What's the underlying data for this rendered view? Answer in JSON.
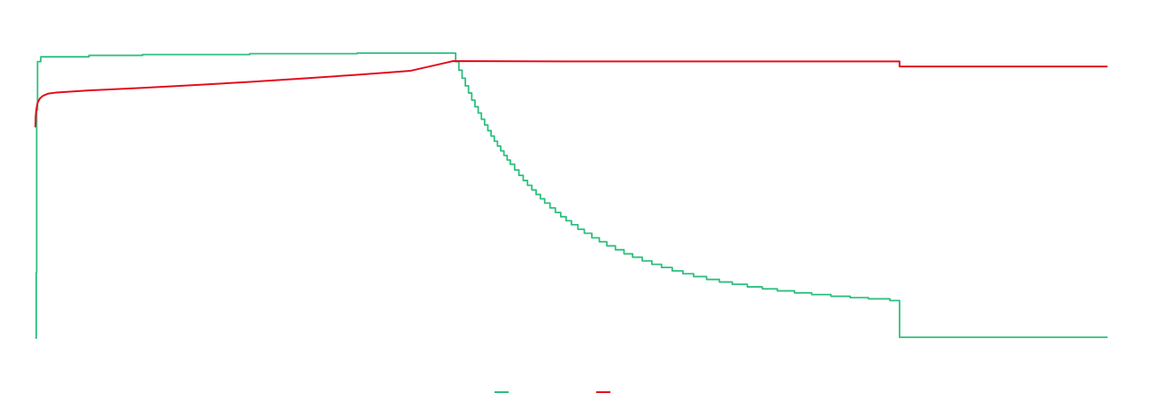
{
  "chart_data": {
    "type": "line",
    "title": "",
    "xlabel": "",
    "ylabel": "",
    "xlim": [
      0,
      1000
    ],
    "ylim": [
      0,
      100
    ],
    "grid": false,
    "legend_position": "bottom-center",
    "series": [
      {
        "key": "green",
        "color": "#2dbf7e",
        "interpolation": "step-after",
        "x": [
          0,
          0.8,
          1.2,
          2,
          5,
          50,
          100,
          200,
          300,
          389.5,
          392,
          395,
          398,
          401,
          404,
          407,
          410,
          413,
          416,
          419,
          422,
          425,
          428,
          431,
          434,
          437,
          440,
          443,
          447,
          451,
          455,
          459,
          463,
          467,
          471,
          475,
          480,
          485,
          490,
          495,
          500,
          506,
          512,
          519,
          526,
          533,
          541,
          549,
          557,
          566,
          575,
          584,
          594,
          604,
          614,
          626,
          638,
          650,
          664,
          678,
          692,
          708,
          724,
          742,
          760,
          777,
          797,
          806,
          1000
        ],
        "y": [
          0,
          23,
          80,
          97,
          98.7,
          99.2,
          99.5,
          99.8,
          100,
          100,
          97,
          94,
          91.2,
          88.5,
          86,
          83.5,
          81.2,
          79,
          76.8,
          74.8,
          72.8,
          70.9,
          69.1,
          67.4,
          65.7,
          64.1,
          62.5,
          61,
          59,
          57.1,
          55.3,
          53.6,
          52,
          50.4,
          48.9,
          47.4,
          45.7,
          44.1,
          42.6,
          41.2,
          39.8,
          38.2,
          36.8,
          35.2,
          33.8,
          32.4,
          31,
          29.6,
          28.4,
          27.1,
          25.9,
          24.8,
          23.6,
          22.6,
          21.6,
          20.6,
          19.7,
          18.9,
          18,
          17.3,
          16.6,
          15.9,
          15.3,
          14.7,
          14.2,
          13.8,
          13.2,
          0.3,
          0.3
        ]
      },
      {
        "key": "red",
        "color": "#e30d1d",
        "interpolation": "linear",
        "x": [
          0,
          0.3,
          1,
          2,
          4,
          7,
          12,
          20,
          50,
          100,
          150,
          200,
          250,
          300,
          350,
          389.5,
          500,
          700,
          806,
          806.01,
          1000
        ],
        "y": [
          74,
          78,
          80.5,
          82.5,
          84,
          85,
          85.8,
          86.2,
          86.9,
          87.8,
          88.8,
          89.9,
          91.1,
          92.4,
          93.8,
          97.2,
          97.1,
          97.1,
          97.1,
          95.3,
          95.3
        ]
      }
    ]
  }
}
